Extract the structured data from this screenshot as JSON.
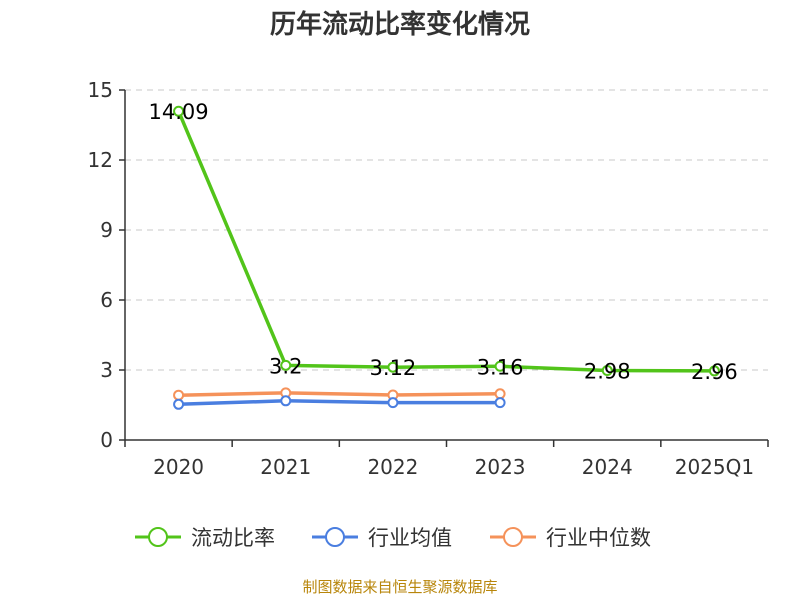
{
  "chart_data": {
    "type": "line",
    "title": "历年流动比率变化情况",
    "categories": [
      "2020",
      "2021",
      "2022",
      "2023",
      "2024",
      "2025Q1"
    ],
    "ylim": [
      0,
      15
    ],
    "yticks": [
      0,
      3,
      6,
      9,
      12,
      15
    ],
    "grid": true,
    "legend_position": "bottom",
    "series": [
      {
        "name": "流动比率",
        "color": "#52c41a",
        "values": [
          14.09,
          3.2,
          3.12,
          3.16,
          2.98,
          2.96
        ],
        "labels": [
          "14.09",
          "3.2",
          "3.12",
          "3.16",
          "2.98",
          "2.96"
        ],
        "show_labels": true
      },
      {
        "name": "行业均值",
        "color": "#4a7ee0",
        "values": [
          1.53,
          1.68,
          1.6,
          1.6,
          null,
          null
        ],
        "show_labels": false
      },
      {
        "name": "行业中位数",
        "color": "#f5925a",
        "values": [
          1.92,
          2.02,
          1.93,
          1.98,
          null,
          null
        ],
        "show_labels": false
      }
    ],
    "source": "制图数据来自恒生聚源数据库"
  }
}
